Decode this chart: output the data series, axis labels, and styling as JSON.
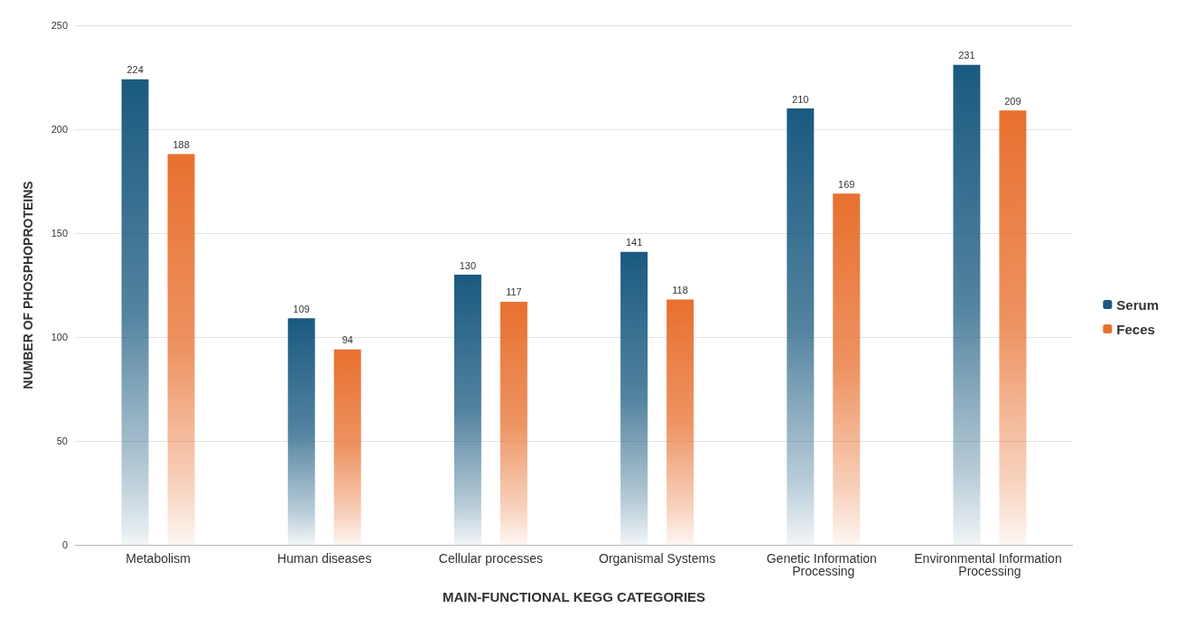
{
  "chart_data": {
    "type": "bar",
    "xlabel": "MAIN-FUNCTIONAL KEGG CATEGORIES",
    "ylabel": "NUMBER OF PHOSPHOPROTEINS",
    "categories": [
      "Metabolism",
      "Human diseases",
      "Cellular processes",
      "Organismal Systems",
      "Genetic Information Processing",
      "Environmental Information Processing"
    ],
    "series": [
      {
        "name": "Serum",
        "color": "#1a5a80",
        "values": [
          224,
          109,
          130,
          141,
          210,
          231
        ]
      },
      {
        "name": "Feces",
        "color": "#e8702f",
        "values": [
          188,
          94,
          117,
          118,
          169,
          209
        ]
      }
    ],
    "ylim": [
      0,
      250
    ],
    "yticks": [
      0,
      50,
      100,
      150,
      200,
      250
    ],
    "grid": "y",
    "legend": "right",
    "data_labels": true
  }
}
